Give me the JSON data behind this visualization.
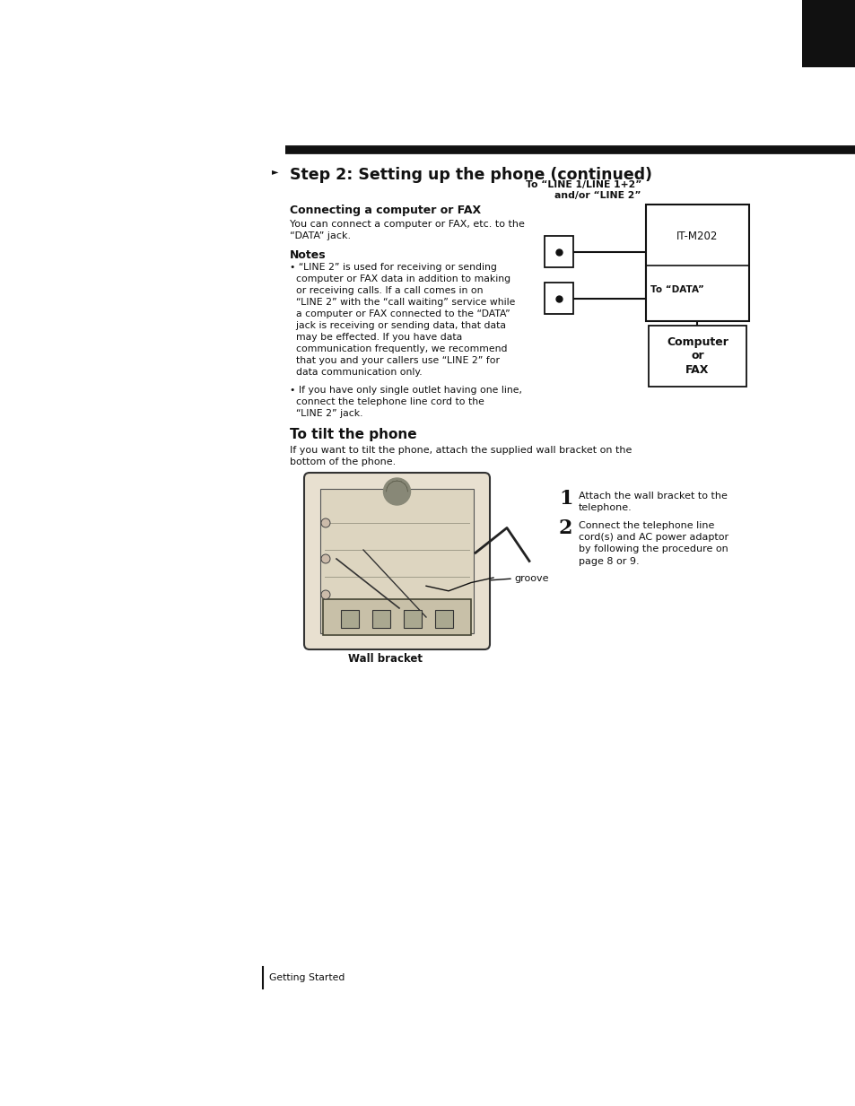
{
  "bg_color": "#ffffff",
  "page_width": 9.54,
  "page_height": 12.33,
  "step_title": "Step 2: Setting up the phone (continued)",
  "section1_title": "Connecting a computer or FAX",
  "section1_body": "You can connect a computer or FAX, etc. to the\n“DATA” jack.",
  "notes_title": "Notes",
  "note1_line1": "• “LINE 2” is used for receiving or sending",
  "note1_line2": "  computer or FAX data in addition to making",
  "note1_line3": "  or receiving calls. If a call comes in on",
  "note1_line4": "  “LINE 2” with the “call waiting” service while",
  "note1_line5": "  a computer or FAX connected to the “DATA”",
  "note1_line6": "  jack is receiving or sending data, that data",
  "note1_line7": "  may be effected. If you have data",
  "note1_line8": "  communication frequently, we recommend",
  "note1_line9": "  that you and your callers use “LINE 2” for",
  "note1_line10": "  data communication only.",
  "note2_line1": "• If you have only single outlet having one line,",
  "note2_line2": "  connect the telephone line cord to the",
  "note2_line3": "  “LINE 2” jack.",
  "section2_title": "To tilt the phone",
  "section2_body": "If you want to tilt the phone, attach the supplied wall bracket on the\nbottom of the phone.",
  "step1_num": "1",
  "step1_text": "Attach the wall bracket to the\ntelephone.",
  "step2_num": "2",
  "step2_text": "Connect the telephone line\ncord(s) and AC power adaptor\nby following the procedure on\npage 8 or 9.",
  "groove_text": "groove",
  "wall_bracket_text": "Wall bracket",
  "footer_text": "Getting Started",
  "top_conn_label": "To “LINE 1/LINE 1+2”\nand/or “LINE 2”",
  "data_label": "To “DATA”",
  "device_label": "IT-M202",
  "computer_label": "Computer\nor\nFAX"
}
